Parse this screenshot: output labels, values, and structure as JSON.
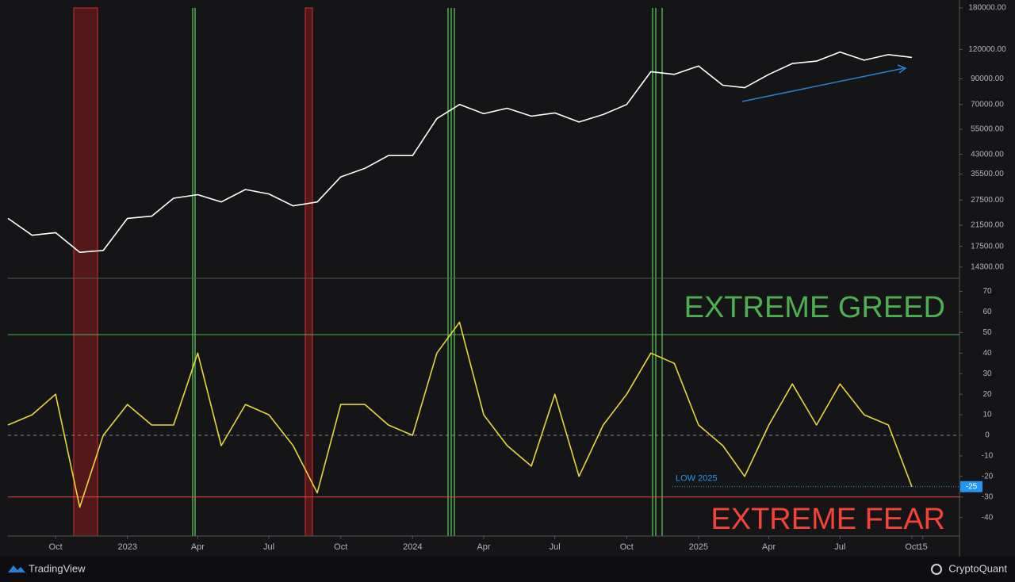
{
  "chart_data": [
    {
      "type": "line",
      "log_scale": true,
      "x": [
        "2022-08",
        "2022-09",
        "2022-10",
        "2022-11",
        "2022-12",
        "2023-01",
        "2023-02",
        "2023-03",
        "2023-04",
        "2023-05",
        "2023-06",
        "2023-07",
        "2023-08",
        "2023-09",
        "2023-10",
        "2023-11",
        "2023-12",
        "2024-01",
        "2024-02",
        "2024-03",
        "2024-04",
        "2024-05",
        "2024-06",
        "2024-07",
        "2024-08",
        "2024-09",
        "2024-10",
        "2024-11",
        "2024-12",
        "2025-01",
        "2025-02",
        "2025-03",
        "2025-04",
        "2025-05",
        "2025-06",
        "2025-07",
        "2025-08",
        "2025-09",
        "2025-10"
      ],
      "series": [
        {
          "color": "#ffffff",
          "values": [
            23000,
            19500,
            20000,
            16500,
            16800,
            23000,
            23500,
            28000,
            29000,
            27000,
            30500,
            29200,
            26000,
            27000,
            34500,
            37500,
            42500,
            42500,
            61000,
            70000,
            64000,
            67500,
            62500,
            64500,
            59000,
            63500,
            70000,
            96500,
            94000,
            102000,
            84500,
            82500,
            94000,
            104500,
            107000,
            117000,
            108000,
            114000,
            111000
          ]
        }
      ],
      "xlim": [
        "2022-08",
        "2025-12"
      ],
      "ylim": [
        12900,
        180000
      ],
      "yticks": [
        {
          "value": 14300,
          "label": "14300.00"
        },
        {
          "value": 17500,
          "label": "17500.00"
        },
        {
          "value": 21500,
          "label": "21500.00"
        },
        {
          "value": 27500,
          "label": "27500.00"
        },
        {
          "value": 35500,
          "label": "35500.00"
        },
        {
          "value": 43000,
          "label": "43000.00"
        },
        {
          "value": 55000,
          "label": "55000.00"
        },
        {
          "value": 70000,
          "label": "70000.00"
        },
        {
          "value": 90000,
          "label": "90000.00"
        },
        {
          "value": 120000,
          "label": "120000.00"
        },
        {
          "value": 180000,
          "label": "180000.00"
        }
      ]
    },
    {
      "type": "line",
      "x": [
        "2022-08",
        "2022-09",
        "2022-10",
        "2022-11",
        "2022-12",
        "2023-01",
        "2023-02",
        "2023-03",
        "2023-04",
        "2023-05",
        "2023-06",
        "2023-07",
        "2023-08",
        "2023-09",
        "2023-10",
        "2023-11",
        "2023-12",
        "2024-01",
        "2024-02",
        "2024-03",
        "2024-04",
        "2024-05",
        "2024-06",
        "2024-07",
        "2024-08",
        "2024-09",
        "2024-10",
        "2024-11",
        "2024-12",
        "2025-01",
        "2025-02",
        "2025-03",
        "2025-04",
        "2025-05",
        "2025-06",
        "2025-07",
        "2025-08",
        "2025-09",
        "2025-10"
      ],
      "series": [
        {
          "color": "#e8d63c",
          "values": [
            5,
            10,
            20,
            -35,
            0,
            15,
            5,
            5,
            40,
            -5,
            15,
            10,
            -5,
            -28,
            15,
            15,
            5,
            0,
            40,
            55,
            10,
            -5,
            -15,
            20,
            -20,
            5,
            20,
            40,
            35,
            5,
            -5,
            -20,
            5,
            25,
            5,
            25,
            10,
            5,
            -25
          ]
        }
      ],
      "xlim": [
        "2022-08",
        "2025-12"
      ],
      "ylim": [
        -49,
        76
      ],
      "yticks": [
        70,
        60,
        50,
        40,
        30,
        20,
        10,
        0,
        -10,
        -20,
        -30,
        -40
      ],
      "xticks": [
        {
          "value": "2022-10",
          "label": "Oct"
        },
        {
          "value": "2023-01",
          "label": "2023"
        },
        {
          "value": "2023-04",
          "label": "Apr"
        },
        {
          "value": "2023-07",
          "label": "Jul"
        },
        {
          "value": "2023-10",
          "label": "Oct"
        },
        {
          "value": "2024-01",
          "label": "2024"
        },
        {
          "value": "2024-04",
          "label": "Apr"
        },
        {
          "value": "2024-07",
          "label": "Jul"
        },
        {
          "value": "2024-10",
          "label": "Oct"
        },
        {
          "value": "2025-01",
          "label": "2025"
        },
        {
          "value": "2025-04",
          "label": "Apr"
        },
        {
          "value": "2025-07",
          "label": "Jul"
        },
        {
          "value": "2025-10",
          "label": "Oct"
        },
        {
          "value": "2025-10-15",
          "label": "15"
        }
      ],
      "baseline": 0,
      "hlines": [
        {
          "value": 49,
          "label": "EXTREME GREED",
          "color": "#4caf50"
        },
        {
          "value": -30,
          "label": "EXTREME  FEAR",
          "color": "#f44336"
        },
        {
          "value": -25,
          "label": "LOW 2025",
          "color": "#2196f3"
        }
      ]
    }
  ],
  "footer": {
    "left": "TradingView",
    "right": "CryptoQuant"
  }
}
